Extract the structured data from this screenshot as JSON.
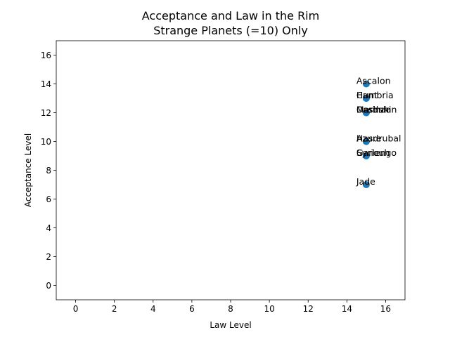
{
  "chart_data": {
    "type": "scatter",
    "title": "Acceptance and Law in the Rim",
    "subtitle": "Strange Planets (=10) Only",
    "xlabel": "Law Level",
    "ylabel": "Acceptance Level",
    "xlim": [
      -1,
      17
    ],
    "ylim": [
      -1,
      17
    ],
    "xticks": [
      0,
      2,
      4,
      6,
      8,
      10,
      12,
      14,
      16
    ],
    "yticks": [
      0,
      2,
      4,
      6,
      8,
      10,
      12,
      14,
      16
    ],
    "grid": false,
    "marker_color": "#1f77b4",
    "points": [
      {
        "x": 15,
        "y": 14,
        "label": "Ascalon"
      },
      {
        "x": 15,
        "y": 13,
        "label": "Cambria"
      },
      {
        "x": 15,
        "y": 13,
        "label": "Hunt"
      },
      {
        "x": 15,
        "y": 12,
        "label": "Marduk"
      },
      {
        "x": 15,
        "y": 12,
        "label": "Dashshin"
      },
      {
        "x": 15,
        "y": 12,
        "label": "Ossinaa"
      },
      {
        "x": 15,
        "y": 10,
        "label": "Hasdrubal"
      },
      {
        "x": 15,
        "y": 10,
        "label": "Azure"
      },
      {
        "x": 15,
        "y": 9,
        "label": "Garlengo"
      },
      {
        "x": 15,
        "y": 9,
        "label": "Syriouh"
      },
      {
        "x": 15,
        "y": 7,
        "label": "Jade"
      }
    ]
  }
}
